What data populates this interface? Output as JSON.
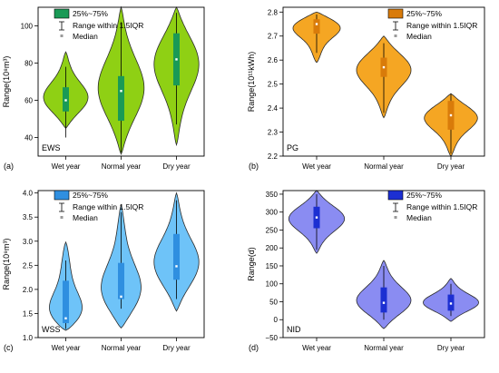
{
  "legend_labels": {
    "iqr": "25%~75%",
    "range": "Range within 1.5IQR",
    "median": "Median"
  },
  "chart_data": [
    {
      "type": "violin",
      "panel_label": "(a)",
      "inner_label": "EWS",
      "ylabel": "Range(10⁸m³)",
      "ylim": [
        30,
        110
      ],
      "yticks": [
        "40",
        "60",
        "80",
        "100"
      ],
      "categories": [
        "Wet year",
        "Normal year",
        "Dry year"
      ],
      "legend_position": "top-left",
      "colors": {
        "fill": "#8FD014",
        "box": "#1A9A56",
        "edge": "#2b2b2b"
      },
      "series": [
        {
          "category": "Wet year",
          "min": 45,
          "max": 86,
          "whisker_low": 40,
          "whisker_high": 78,
          "q1": 54,
          "q3": 67,
          "median": 60
        },
        {
          "category": "Normal year",
          "min": 31,
          "max": 110,
          "whisker_low": 32,
          "whisker_high": 102,
          "q1": 49,
          "q3": 73,
          "median": 65
        },
        {
          "category": "Dry year",
          "min": 36,
          "max": 110,
          "whisker_low": 47,
          "whisker_high": 107,
          "q1": 68,
          "q3": 96,
          "median": 82
        }
      ]
    },
    {
      "type": "violin",
      "panel_label": "(b)",
      "inner_label": "PG",
      "ylabel": "Range(10¹¹kWh)",
      "ylim": [
        2.2,
        2.82
      ],
      "yticks": [
        "2.2",
        "2.3",
        "2.4",
        "2.5",
        "2.6",
        "2.7",
        "2.8"
      ],
      "categories": [
        "Wet year",
        "Normal year",
        "Dry year"
      ],
      "legend_position": "top-right",
      "colors": {
        "fill": "#F5A623",
        "box": "#D97B0A",
        "edge": "#2b2b2b"
      },
      "series": [
        {
          "category": "Wet year",
          "min": 2.59,
          "max": 2.8,
          "whisker_low": 2.63,
          "whisker_high": 2.79,
          "q1": 2.71,
          "q3": 2.77,
          "median": 2.75
        },
        {
          "category": "Normal year",
          "min": 2.36,
          "max": 2.7,
          "whisker_low": 2.38,
          "whisker_high": 2.67,
          "q1": 2.53,
          "q3": 2.61,
          "median": 2.57
        },
        {
          "category": "Dry year",
          "min": 2.2,
          "max": 2.46,
          "whisker_low": 2.21,
          "whisker_high": 2.46,
          "q1": 2.31,
          "q3": 2.43,
          "median": 2.37
        }
      ]
    },
    {
      "type": "violin",
      "panel_label": "(c)",
      "inner_label": "WSS",
      "ylabel": "Range(10⁹m³)",
      "ylim": [
        1.0,
        4.05
      ],
      "yticks": [
        "1.0",
        "1.5",
        "2.0",
        "2.5",
        "3.0",
        "3.5",
        "4.0"
      ],
      "categories": [
        "Wet year",
        "Normal year",
        "Dry year"
      ],
      "legend_position": "top-left",
      "colors": {
        "fill": "#6EC3F8",
        "box": "#2F8FE0",
        "edge": "#2b2b2b"
      },
      "series": [
        {
          "category": "Wet year",
          "min": 1.15,
          "max": 2.98,
          "whisker_low": 1.18,
          "whisker_high": 2.6,
          "q1": 1.3,
          "q3": 2.18,
          "median": 1.4
        },
        {
          "category": "Normal year",
          "min": 1.2,
          "max": 3.75,
          "whisker_low": 1.6,
          "whisker_high": 3.6,
          "q1": 1.8,
          "q3": 2.55,
          "median": 1.85
        },
        {
          "category": "Dry year",
          "min": 1.55,
          "max": 4.0,
          "whisker_low": 1.8,
          "whisker_high": 3.85,
          "q1": 2.2,
          "q3": 3.15,
          "median": 2.48
        }
      ]
    },
    {
      "type": "violin",
      "panel_label": "(d)",
      "inner_label": "NID",
      "ylabel": "Range(d)",
      "ylim": [
        -50,
        360
      ],
      "yticks": [
        "−50",
        "0",
        "50",
        "100",
        "150",
        "200",
        "250",
        "300",
        "350"
      ],
      "categories": [
        "Wet year",
        "Normal year",
        "Dry year"
      ],
      "legend_position": "top-right",
      "colors": {
        "fill": "#8A8CF2",
        "box": "#1C2FD2",
        "edge": "#2b2b2b"
      },
      "series": [
        {
          "category": "Wet year",
          "min": 185,
          "max": 360,
          "whisker_low": 195,
          "whisker_high": 350,
          "q1": 255,
          "q3": 315,
          "median": 285
        },
        {
          "category": "Normal year",
          "min": -25,
          "max": 165,
          "whisker_low": 0,
          "whisker_high": 150,
          "q1": 20,
          "q3": 90,
          "median": 47
        },
        {
          "category": "Dry year",
          "min": -5,
          "max": 115,
          "whisker_low": 10,
          "whisker_high": 100,
          "q1": 25,
          "q3": 70,
          "median": 45
        }
      ]
    }
  ]
}
